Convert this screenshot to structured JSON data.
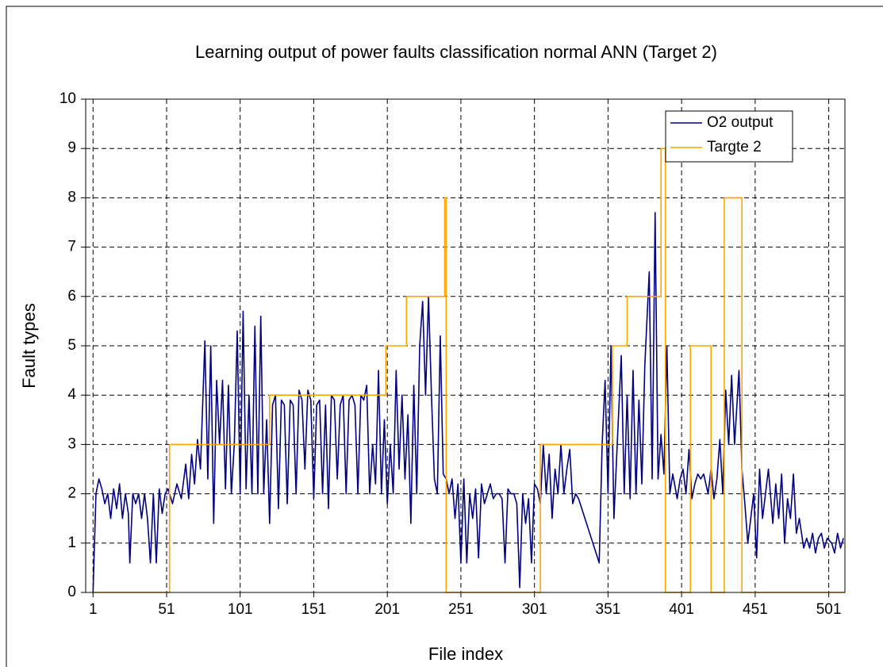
{
  "chart_data": {
    "type": "line",
    "title": "Learning output of power faults classification normal ANN (Target 2)",
    "xlabel": "File index",
    "ylabel": "Fault types",
    "xlim": [
      -4,
      512
    ],
    "ylim": [
      0,
      10
    ],
    "xticks": [
      1,
      51,
      101,
      151,
      201,
      251,
      301,
      351,
      401,
      451,
      501
    ],
    "yticks": [
      0,
      1,
      2,
      3,
      4,
      5,
      6,
      7,
      8,
      9,
      10
    ],
    "grid": true,
    "legend": "upper right",
    "series": [
      {
        "name": "O2 output",
        "color": "#000080",
        "x": [
          1,
          3,
          5,
          7,
          9,
          11,
          13,
          15,
          17,
          19,
          21,
          23,
          25,
          26,
          28,
          30,
          32,
          34,
          36,
          38,
          40,
          42,
          44,
          46,
          48,
          50,
          52,
          55,
          58,
          61,
          64,
          66,
          68,
          70,
          72,
          74,
          77,
          79,
          81,
          83,
          85,
          87,
          89,
          91,
          93,
          95,
          97,
          99,
          101,
          103,
          105,
          107,
          109,
          111,
          113,
          115,
          117,
          119,
          121,
          123,
          125,
          127,
          129,
          131,
          133,
          135,
          137,
          139,
          141,
          143,
          145,
          147,
          149,
          151,
          153,
          155,
          157,
          159,
          161,
          163,
          165,
          167,
          169,
          171,
          173,
          175,
          177,
          179,
          181,
          183,
          185,
          187,
          189,
          191,
          193,
          195,
          197,
          199,
          201,
          203,
          205,
          207,
          209,
          211,
          213,
          215,
          217,
          219,
          221,
          223,
          225,
          227,
          229,
          231,
          233,
          235,
          237,
          239,
          241,
          243,
          245,
          247,
          249,
          251,
          253,
          255,
          257,
          259,
          261,
          263,
          265,
          267,
          269,
          271,
          273,
          275,
          277,
          279,
          281,
          283,
          285,
          287,
          289,
          291,
          293,
          295,
          297,
          299,
          301,
          303,
          305,
          307,
          309,
          311,
          313,
          315,
          317,
          319,
          321,
          323,
          325,
          327,
          329,
          331,
          345,
          347,
          349,
          351,
          353,
          355,
          358,
          360,
          362,
          364,
          366,
          368,
          370,
          372,
          374,
          376,
          379,
          381,
          383,
          385,
          387,
          389,
          391,
          393,
          395,
          398,
          400,
          402,
          404,
          406,
          408,
          410,
          412,
          414,
          416,
          419,
          421,
          423,
          425,
          427,
          429,
          431,
          433,
          435,
          437,
          440,
          442,
          444,
          446,
          448,
          450,
          452,
          454,
          456,
          458,
          460,
          463,
          465,
          467,
          469,
          471,
          473,
          475,
          477,
          479,
          481,
          484,
          486,
          488,
          490,
          492,
          494,
          496,
          498,
          500,
          503,
          505,
          507,
          509,
          511
        ],
        "values": [
          0,
          2,
          2.3,
          2.1,
          1.8,
          2.0,
          1.5,
          2.1,
          1.7,
          2.2,
          1.5,
          2.0,
          1.6,
          0.6,
          2.0,
          1.8,
          2.0,
          1.5,
          2.0,
          1.5,
          0.6,
          2.0,
          0.6,
          2.1,
          1.6,
          2.0,
          2.1,
          1.8,
          2.2,
          1.9,
          2.6,
          1.9,
          2.8,
          2.2,
          3.1,
          2.5,
          5.1,
          2.3,
          5.0,
          1.4,
          4.3,
          3.0,
          4.3,
          2.1,
          4.2,
          2.0,
          3.0,
          5.3,
          2.0,
          5.7,
          2.1,
          4.0,
          2.0,
          5.4,
          2.0,
          5.6,
          2.0,
          3.5,
          1.4,
          3.8,
          4.0,
          1.7,
          3.9,
          3.8,
          1.8,
          3.9,
          3.8,
          2.0,
          4.1,
          3.9,
          2.5,
          4.1,
          3.9,
          1.9,
          3.8,
          3.9,
          2.0,
          3.8,
          1.7,
          4.0,
          3.9,
          2.3,
          3.8,
          4.0,
          2.0,
          3.9,
          4.0,
          3.8,
          2.0,
          4.0,
          3.9,
          4.2,
          2.0,
          3.0,
          2.2,
          4.5,
          2.0,
          3.5,
          1.8,
          3.0,
          2.0,
          4.5,
          2.5,
          4.0,
          2.3,
          3.6,
          1.4,
          4.2,
          2.0,
          5.0,
          5.9,
          4.0,
          6.0,
          4.0,
          2.3,
          2.0,
          5.2,
          2.4,
          2.3,
          2.0,
          2.3,
          1.5,
          2.2,
          0.6,
          2.3,
          0.6,
          2.0,
          1.5,
          2.1,
          0.7,
          2.2,
          1.8,
          2.0,
          2.2,
          1.9,
          2.0,
          2.0,
          1.9,
          0.6,
          2.1,
          2.0,
          2.0,
          1.8,
          0.1,
          2.0,
          1.4,
          1.9,
          0.6,
          2.2,
          2.1,
          1.8,
          3.0,
          2.0,
          2.8,
          1.5,
          2.5,
          2.0,
          3.0,
          2.0,
          2.5,
          2.9,
          1.8,
          2.0,
          1.9,
          0.6,
          3.0,
          4.3,
          2.0,
          5.0,
          1.5,
          3.5,
          4.8,
          2.0,
          4.0,
          1.9,
          4.5,
          2.0,
          3.9,
          2.2,
          4.6,
          6.5,
          2.3,
          7.7,
          2.3,
          3.2,
          2.4,
          5.0,
          2.0,
          2.4,
          1.9,
          2.3,
          2.5,
          2.0,
          2.9,
          1.9,
          2.2,
          2.4,
          2.3,
          2.4,
          2.0,
          2.5,
          1.9,
          2.3,
          3.1,
          2.0,
          4.1,
          3.0,
          4.4,
          3.0,
          4.5,
          2.5,
          1.8,
          1.0,
          1.5,
          2.0,
          0.7,
          2.5,
          1.5,
          2.0,
          2.5,
          1.4,
          2.2,
          1.5,
          2.4,
          1.0,
          1.9,
          1.5,
          2.4,
          1.2,
          1.5,
          0.9,
          1.1,
          0.9,
          1.2,
          0.8,
          1.1,
          1.2,
          0.9,
          1.1,
          1.0,
          0.8,
          1.2,
          0.9,
          1.1
        ]
      },
      {
        "name": "Targte 2",
        "color": "#ffa500",
        "x": [
          1,
          53,
          53,
          121,
          121,
          200,
          200,
          214,
          214,
          240,
          240,
          241,
          241,
          305,
          305,
          354,
          354,
          364,
          364,
          387,
          387,
          390,
          390,
          407,
          407,
          421,
          421,
          430,
          430,
          442,
          442,
          512
        ],
        "values": [
          0,
          0,
          3,
          3,
          4,
          4,
          5,
          5,
          6,
          6,
          8,
          8,
          0,
          0,
          3,
          3,
          5,
          5,
          6,
          6,
          9,
          9,
          0,
          0,
          5,
          5,
          0,
          0,
          8,
          8,
          0,
          0
        ]
      }
    ]
  }
}
